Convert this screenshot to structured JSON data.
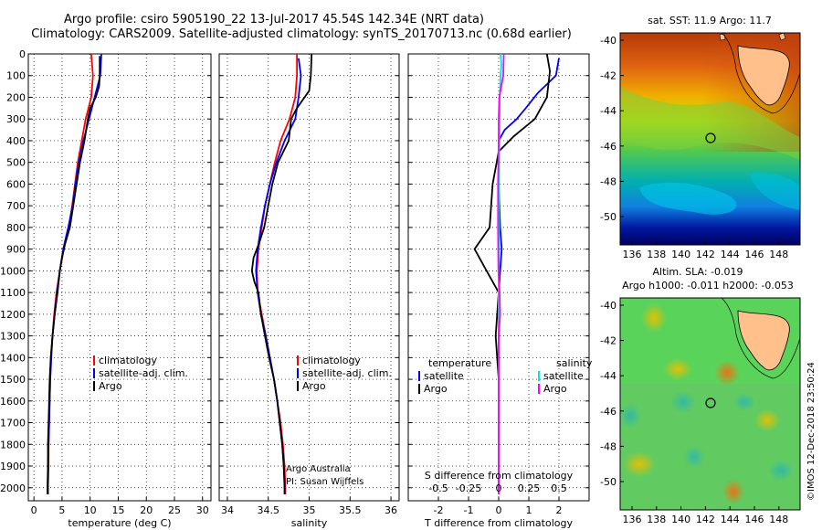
{
  "title_line1": "Argo profile: csiro 5905190_22 13-Jul-2017 45.54S 142.34E (NRT data)",
  "title_line2": "Climatology: CARS2009. Satellite-adjusted climatology: synTS_20170713.nc (0.68d earlier)",
  "chart_data": [
    {
      "type": "line",
      "panel": "temperature",
      "xlabel": "temperature (deg C)",
      "ylabel": "",
      "xlim": [
        -1,
        31.5
      ],
      "ylim": [
        2060,
        0
      ],
      "xticks": [
        0,
        5,
        10,
        15,
        20,
        25,
        30
      ],
      "yticks": [
        0,
        100,
        200,
        300,
        400,
        500,
        600,
        700,
        800,
        900,
        1000,
        1100,
        1200,
        1300,
        1400,
        1500,
        1600,
        1700,
        1800,
        1900,
        2000
      ],
      "legend": {
        "position": "bottom-right",
        "entries": [
          "climatology",
          "satellite-adj. clim.",
          "Argo"
        ]
      },
      "grid": true,
      "series": [
        {
          "name": "climatology",
          "color": "#ff0000",
          "points": [
            [
              10.2,
              0
            ],
            [
              10.5,
              100
            ],
            [
              10.2,
              200
            ],
            [
              9.2,
              300
            ],
            [
              8.5,
              400
            ],
            [
              7.8,
              500
            ],
            [
              7.3,
              600
            ],
            [
              6.8,
              700
            ],
            [
              6.2,
              800
            ],
            [
              5.3,
              900
            ],
            [
              4.6,
              1000
            ],
            [
              4.0,
              1100
            ],
            [
              3.6,
              1200
            ],
            [
              3.3,
              1300
            ],
            [
              3.0,
              1400
            ],
            [
              2.9,
              1500
            ],
            [
              2.8,
              1600
            ],
            [
              2.7,
              1700
            ],
            [
              2.6,
              1800
            ],
            [
              2.6,
              1900
            ],
            [
              2.5,
              2000
            ],
            [
              2.5,
              2030
            ]
          ]
        },
        {
          "name": "satellite-adj. clim.",
          "color": "#0000ff",
          "points": [
            [
              12.0,
              0
            ],
            [
              11.8,
              100
            ],
            [
              10.8,
              200
            ],
            [
              9.8,
              300
            ],
            [
              8.8,
              400
            ],
            [
              8.0,
              500
            ],
            [
              7.4,
              600
            ],
            [
              6.9,
              700
            ],
            [
              6.1,
              800
            ],
            [
              5.2,
              900
            ],
            [
              4.6,
              1000
            ],
            [
              4.1,
              1100
            ],
            [
              3.7,
              1200
            ],
            [
              3.3,
              1300
            ],
            [
              3.1,
              1400
            ],
            [
              2.9,
              1500
            ],
            [
              2.8,
              1600
            ],
            [
              2.7,
              1700
            ],
            [
              2.6,
              1800
            ],
            [
              2.5,
              1900
            ],
            [
              2.4,
              2000
            ],
            [
              2.4,
              2030
            ]
          ]
        },
        {
          "name": "Argo",
          "color": "#000000",
          "points": [
            [
              11.7,
              10
            ],
            [
              11.7,
              100
            ],
            [
              11.6,
              150
            ],
            [
              11.0,
              200
            ],
            [
              10.0,
              250
            ],
            [
              9.6,
              300
            ],
            [
              9.0,
              400
            ],
            [
              8.2,
              500
            ],
            [
              7.6,
              600
            ],
            [
              7.0,
              700
            ],
            [
              6.4,
              800
            ],
            [
              5.5,
              880
            ],
            [
              5.0,
              940
            ],
            [
              4.6,
              1000
            ],
            [
              4.2,
              1100
            ],
            [
              3.7,
              1200
            ],
            [
              3.3,
              1300
            ],
            [
              3.0,
              1400
            ],
            [
              2.8,
              1500
            ],
            [
              2.7,
              1600
            ],
            [
              2.6,
              1700
            ],
            [
              2.5,
              1800
            ],
            [
              2.5,
              1900
            ],
            [
              2.5,
              2000
            ],
            [
              2.5,
              2030
            ]
          ]
        }
      ]
    },
    {
      "type": "line",
      "panel": "salinity",
      "xlabel": "salinity",
      "ylabel": "",
      "xlim": [
        33.9,
        36.1
      ],
      "ylim": [
        2060,
        0
      ],
      "xticks": [
        34,
        34.5,
        35,
        35.5,
        36
      ],
      "xtick_labels": [
        "34",
        "34.5",
        "35",
        "35.5",
        "36"
      ],
      "legend": {
        "position": "bottom-right",
        "entries": [
          "climatology",
          "satellite-adj. clim.",
          "Argo"
        ]
      },
      "grid": true,
      "series": [
        {
          "name": "climatology",
          "color": "#ff0000",
          "points": [
            [
              34.85,
              0
            ],
            [
              34.85,
              100
            ],
            [
              34.83,
              200
            ],
            [
              34.76,
              300
            ],
            [
              34.65,
              400
            ],
            [
              34.58,
              500
            ],
            [
              34.52,
              600
            ],
            [
              34.46,
              700
            ],
            [
              34.42,
              800
            ],
            [
              34.38,
              900
            ],
            [
              34.36,
              1000
            ],
            [
              34.37,
              1100
            ],
            [
              34.42,
              1200
            ],
            [
              34.47,
              1300
            ],
            [
              34.52,
              1400
            ],
            [
              34.57,
              1500
            ],
            [
              34.61,
              1600
            ],
            [
              34.65,
              1700
            ],
            [
              34.68,
              1800
            ],
            [
              34.7,
              1900
            ],
            [
              34.71,
              2000
            ],
            [
              34.71,
              2030
            ]
          ]
        },
        {
          "name": "satellite-adj. clim.",
          "color": "#0000ff",
          "points": [
            [
              34.87,
              20
            ],
            [
              34.9,
              100
            ],
            [
              34.87,
              200
            ],
            [
              34.83,
              300
            ],
            [
              34.7,
              400
            ],
            [
              34.6,
              500
            ],
            [
              34.52,
              600
            ],
            [
              34.46,
              700
            ],
            [
              34.41,
              800
            ],
            [
              34.37,
              900
            ],
            [
              34.35,
              1000
            ],
            [
              34.37,
              1100
            ],
            [
              34.41,
              1200
            ],
            [
              34.47,
              1300
            ],
            [
              34.52,
              1400
            ],
            [
              34.57,
              1500
            ],
            [
              34.61,
              1600
            ],
            [
              34.64,
              1700
            ],
            [
              34.67,
              1800
            ],
            [
              34.69,
              1900
            ],
            [
              34.7,
              2000
            ],
            [
              34.7,
              2030
            ]
          ]
        },
        {
          "name": "Argo",
          "color": "#000000",
          "points": [
            [
              35.03,
              0
            ],
            [
              35.02,
              100
            ],
            [
              35.0,
              170
            ],
            [
              34.85,
              250
            ],
            [
              34.78,
              300
            ],
            [
              34.75,
              400
            ],
            [
              34.62,
              500
            ],
            [
              34.55,
              600
            ],
            [
              34.5,
              700
            ],
            [
              34.45,
              800
            ],
            [
              34.38,
              880
            ],
            [
              34.32,
              940
            ],
            [
              34.3,
              1000
            ],
            [
              34.33,
              1050
            ],
            [
              34.38,
              1100
            ],
            [
              34.41,
              1200
            ],
            [
              34.46,
              1300
            ],
            [
              34.51,
              1400
            ],
            [
              34.57,
              1500
            ],
            [
              34.61,
              1600
            ],
            [
              34.64,
              1700
            ],
            [
              34.67,
              1800
            ],
            [
              34.69,
              1900
            ],
            [
              34.7,
              2000
            ],
            [
              34.7,
              2030
            ]
          ]
        }
      ]
    },
    {
      "type": "line",
      "panel": "difference",
      "xlabel": "T difference from climatology",
      "ylabel": "",
      "xlim": [
        -3.0,
        3.0
      ],
      "ylim": [
        2060,
        0
      ],
      "xticks": [
        -2,
        -1,
        0,
        1,
        2
      ],
      "secondary_xlabel": "S difference from climatology",
      "secondary_xtick_labels": [
        "-0.5",
        "-0.25",
        "0",
        "0.25",
        "0.5"
      ],
      "legend": {
        "position": "bottom",
        "headers": [
          "temperature",
          "salinity"
        ],
        "entries": [
          "satellite",
          "Argo",
          "satellite",
          "Argo"
        ]
      },
      "grid": true,
      "series": [
        {
          "name": "satellite",
          "group": "temperature",
          "color": "#0000ff",
          "points": [
            [
              2.0,
              20
            ],
            [
              1.9,
              100
            ],
            [
              1.3,
              180
            ],
            [
              0.9,
              250
            ],
            [
              0.6,
              300
            ],
            [
              0.2,
              350
            ],
            [
              0.0,
              400
            ],
            [
              0.0,
              600
            ],
            [
              0.05,
              800
            ],
            [
              0.1,
              900
            ],
            [
              0.05,
              1000
            ],
            [
              0.0,
              1100
            ],
            [
              0.0,
              1300
            ],
            [
              0.0,
              1500
            ],
            [
              0.0,
              1700
            ],
            [
              0.0,
              1900
            ],
            [
              0.0,
              2030
            ]
          ]
        },
        {
          "name": "Argo",
          "group": "temperature",
          "color": "#000000",
          "points": [
            [
              1.6,
              0
            ],
            [
              1.7,
              80
            ],
            [
              1.6,
              200
            ],
            [
              1.2,
              300
            ],
            [
              0.5,
              380
            ],
            [
              0.0,
              450
            ],
            [
              -0.2,
              600
            ],
            [
              -0.3,
              800
            ],
            [
              -0.8,
              900
            ],
            [
              -0.4,
              1000
            ],
            [
              0.0,
              1100
            ],
            [
              -0.1,
              1300
            ],
            [
              0.0,
              1500
            ],
            [
              0.0,
              1700
            ],
            [
              0.0,
              1900
            ],
            [
              0.0,
              2030
            ]
          ]
        },
        {
          "name": "satellite",
          "group": "salinity",
          "color": "#00e6e6",
          "points": [
            [
              0.06,
              0
            ],
            [
              0.09,
              50
            ],
            [
              0.06,
              100
            ],
            [
              0.04,
              200
            ],
            [
              0.03,
              300
            ],
            [
              0.02,
              400
            ],
            [
              0.01,
              600
            ],
            [
              0.01,
              800
            ],
            [
              0.0,
              1000
            ],
            [
              0.0,
              1200
            ],
            [
              0.0,
              1500
            ],
            [
              0.0,
              1700
            ],
            [
              0.0,
              1900
            ],
            [
              0.0,
              2030
            ]
          ]
        },
        {
          "name": "Argo",
          "group": "salinity",
          "color": "#ff00ff",
          "points": [
            [
              0.17,
              0
            ],
            [
              0.15,
              100
            ],
            [
              0.02,
              200
            ],
            [
              0.0,
              300
            ],
            [
              0.0,
              400
            ],
            [
              -0.02,
              600
            ],
            [
              -0.02,
              800
            ],
            [
              -0.01,
              1000
            ],
            [
              0.03,
              1100
            ],
            [
              0.05,
              1200
            ],
            [
              0.0,
              1300
            ],
            [
              0.0,
              1500
            ],
            [
              0.0,
              1700
            ],
            [
              0.0,
              1900
            ],
            [
              0.0,
              2030
            ]
          ]
        }
      ]
    },
    {
      "type": "heatmap",
      "panel": "sst_map",
      "title": "sat. SST: 11.9 Argo: 11.7",
      "x_tick_labels": [
        "136",
        "138",
        "140",
        "142",
        "144",
        "146",
        "148"
      ],
      "y_tick_labels": [
        "-40",
        "-42",
        "-44",
        "-46",
        "-48",
        "-50"
      ],
      "marker": {
        "lon": 142.34,
        "lat": -45.54
      }
    },
    {
      "type": "heatmap",
      "panel": "sla_map",
      "title": "Altim. SLA: -0.019",
      "subtitle": "Argo h1000: -0.011 h2000: -0.053",
      "x_tick_labels": [
        "136",
        "138",
        "140",
        "142",
        "144",
        "146",
        "148"
      ],
      "y_tick_labels": [
        "-40",
        "-42",
        "-44",
        "-46",
        "-48",
        "-50"
      ],
      "marker": {
        "lon": 142.34,
        "lat": -45.54
      }
    }
  ],
  "credit_line1": "Argo Australia",
  "credit_line2": "PI: Susan Wijffels",
  "imos_stamp": "©IMOS 12-Dec-2018 23:50:24"
}
